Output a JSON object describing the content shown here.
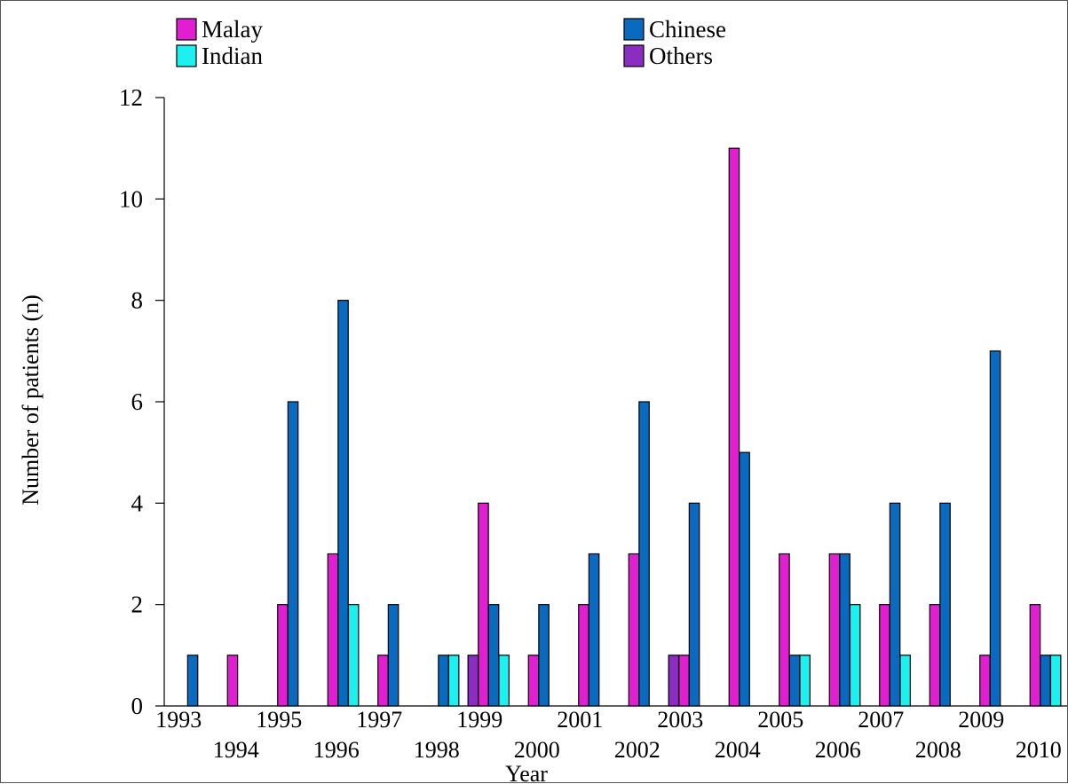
{
  "chart_data": {
    "type": "bar",
    "title": "",
    "xlabel": "Year",
    "ylabel": "Number of patients (n)",
    "ylim": [
      0,
      12
    ],
    "yticks": [
      "0",
      "2",
      "4",
      "6",
      "8",
      "10",
      "12"
    ],
    "grid": false,
    "legend_position": "top",
    "categories": [
      "1993",
      "1994",
      "1995",
      "1996",
      "1997",
      "1998",
      "1999",
      "2000",
      "2001",
      "2002",
      "2003",
      "2004",
      "2005",
      "2006",
      "2007",
      "2008",
      "2009",
      "2010"
    ],
    "series": [
      {
        "name": "Malay",
        "color": "#E020D0",
        "values": [
          0,
          1,
          2,
          3,
          1,
          0,
          4,
          1,
          2,
          3,
          1,
          11,
          3,
          3,
          2,
          2,
          1,
          2
        ]
      },
      {
        "name": "Chinese",
        "color": "#0A6ABF",
        "values": [
          1,
          0,
          6,
          8,
          2,
          1,
          2,
          2,
          3,
          6,
          4,
          5,
          1,
          3,
          4,
          4,
          7,
          1
        ]
      },
      {
        "name": "Indian",
        "color": "#1EF0F0",
        "values": [
          0,
          0,
          0,
          2,
          0,
          1,
          1,
          0,
          0,
          0,
          0,
          0,
          1,
          2,
          1,
          0,
          0,
          1
        ]
      },
      {
        "name": "Others",
        "color": "#8A2DC0",
        "values": [
          0,
          0,
          0,
          0,
          0,
          0,
          1,
          0,
          0,
          0,
          1,
          0,
          0,
          0,
          0,
          0,
          0,
          0
        ]
      }
    ]
  }
}
